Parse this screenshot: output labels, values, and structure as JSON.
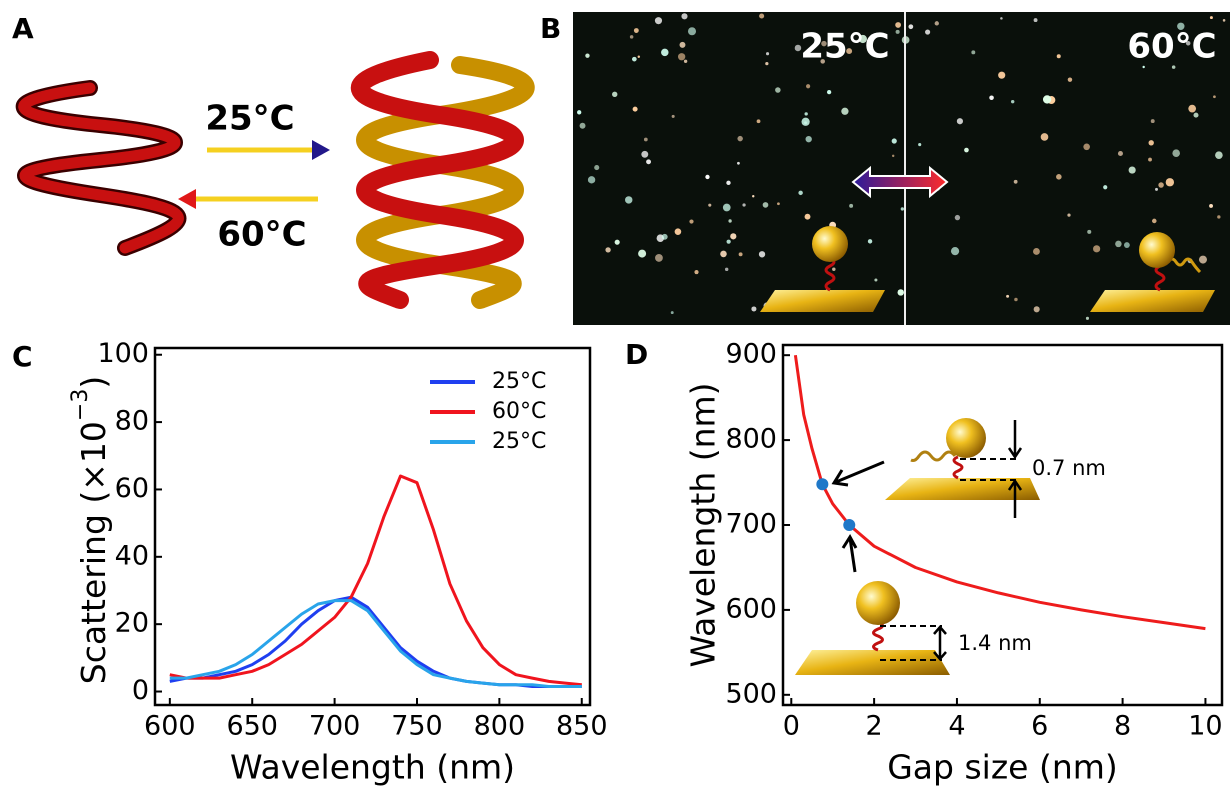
{
  "panels": {
    "a": {
      "label": "A",
      "forward": "25°C",
      "backward": "60°C"
    },
    "b": {
      "label": "B",
      "left": "25°C",
      "right": "60°C"
    },
    "c": {
      "label": "C"
    },
    "d": {
      "label": "D",
      "gap_small": "0.7 nm",
      "gap_large": "1.4 nm"
    }
  },
  "chart_data": [
    {
      "type": "line",
      "xlabel": "Wavelength (nm)",
      "ylabel": "Scattering (×10",
      "ylabel_sup": "−3",
      "ylabel_end": ")",
      "x": [
        600,
        610,
        620,
        630,
        640,
        650,
        660,
        670,
        680,
        690,
        700,
        710,
        720,
        730,
        740,
        750,
        760,
        770,
        780,
        790,
        800,
        810,
        820,
        830,
        840,
        850
      ],
      "series": [
        {
          "name": "25°C",
          "color": "#1f3ff0",
          "values": [
            3,
            4,
            4,
            5,
            6,
            8,
            11,
            15,
            20,
            24,
            27,
            28,
            25,
            19,
            13,
            9,
            6,
            4,
            3,
            2.5,
            2,
            2,
            1.5,
            1.5,
            1.5,
            1.5
          ]
        },
        {
          "name": "60°C",
          "color": "#f0141e",
          "values": [
            5,
            4,
            4,
            4,
            5,
            6,
            8,
            11,
            14,
            18,
            22,
            28,
            38,
            52,
            64,
            62,
            48,
            32,
            21,
            13,
            8,
            5,
            4,
            3,
            2.5,
            2
          ]
        },
        {
          "name": "25°C",
          "color": "#29a4ea",
          "values": [
            4,
            4,
            5,
            6,
            8,
            11,
            15,
            19,
            23,
            26,
            27,
            27,
            24,
            18,
            12,
            8,
            5,
            4,
            3,
            2.5,
            2,
            2,
            2,
            1.5,
            1.5,
            1.5
          ]
        }
      ],
      "xlim": [
        591,
        855
      ],
      "ylim": [
        -4,
        102
      ],
      "xticks": [
        600,
        650,
        700,
        750,
        800,
        850
      ],
      "yticks": [
        0,
        20,
        40,
        60,
        80,
        100
      ]
    },
    {
      "type": "line",
      "xlabel": "Gap size (nm)",
      "ylabel": "Wavelength (nm)",
      "x": [
        0.1,
        0.3,
        0.5,
        0.75,
        1,
        1.4,
        2,
        3,
        4,
        5,
        6,
        7,
        8,
        9,
        10
      ],
      "values": [
        900,
        830,
        790,
        748,
        725,
        700,
        675,
        650,
        633,
        620,
        609,
        600,
        592,
        585,
        578
      ],
      "color": "#ee1c1c",
      "points": {
        "x": [
          0.75,
          1.4
        ],
        "values": [
          748,
          700
        ],
        "color": "#1f78c8"
      },
      "xlim": [
        -0.2,
        10.4
      ],
      "ylim": [
        488,
        912
      ],
      "xticks": [
        0,
        2,
        4,
        6,
        8,
        10
      ],
      "yticks": [
        500,
        600,
        700,
        800,
        900
      ]
    }
  ]
}
